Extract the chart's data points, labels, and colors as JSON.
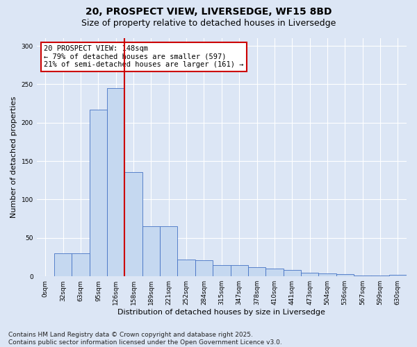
{
  "title_line1": "20, PROSPECT VIEW, LIVERSEDGE, WF15 8BD",
  "title_line2": "Size of property relative to detached houses in Liversedge",
  "xlabel": "Distribution of detached houses by size in Liversedge",
  "ylabel": "Number of detached properties",
  "categories": [
    "0sqm",
    "32sqm",
    "63sqm",
    "95sqm",
    "126sqm",
    "158sqm",
    "189sqm",
    "221sqm",
    "252sqm",
    "284sqm",
    "315sqm",
    "347sqm",
    "378sqm",
    "410sqm",
    "441sqm",
    "473sqm",
    "504sqm",
    "536sqm",
    "567sqm",
    "599sqm",
    "630sqm"
  ],
  "values": [
    0,
    30,
    30,
    217,
    245,
    136,
    65,
    65,
    22,
    21,
    15,
    15,
    12,
    10,
    8,
    5,
    4,
    3,
    1,
    1,
    2
  ],
  "bar_color": "#c5d8f0",
  "bar_edge_color": "#4472c4",
  "highlight_color": "#cc0000",
  "annotation_text": "20 PROSPECT VIEW: 148sqm\n← 79% of detached houses are smaller (597)\n21% of semi-detached houses are larger (161) →",
  "annotation_box_color": "#ffffff",
  "annotation_box_edge": "#cc0000",
  "ylim": [
    0,
    310
  ],
  "yticks": [
    0,
    50,
    100,
    150,
    200,
    250,
    300
  ],
  "background_color": "#dce6f5",
  "grid_color": "#ffffff",
  "footer_line1": "Contains HM Land Registry data © Crown copyright and database right 2025.",
  "footer_line2": "Contains public sector information licensed under the Open Government Licence v3.0.",
  "title_fontsize": 10,
  "subtitle_fontsize": 9,
  "axis_label_fontsize": 8,
  "tick_fontsize": 6.5,
  "annotation_fontsize": 7.5,
  "footer_fontsize": 6.5,
  "red_line_x": 4.5
}
